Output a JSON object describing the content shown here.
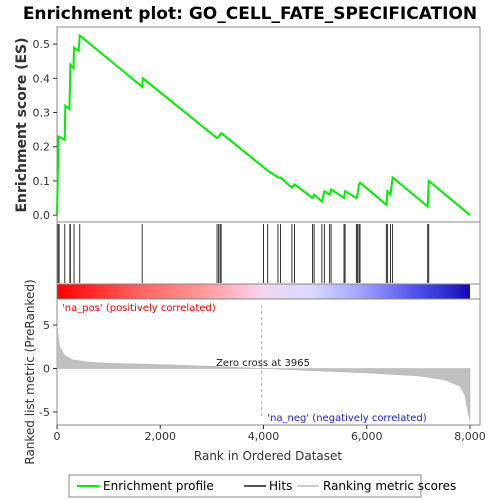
{
  "chart_data": {
    "type": "line",
    "title": "Enrichment plot: GO_CELL_FATE_SPECIFICATION",
    "xlabel": "Rank in Ordered Dataset",
    "xlim": [
      0,
      8000
    ],
    "x_ticks": [
      "0",
      "2,000",
      "4,000",
      "6,000",
      "8,000"
    ],
    "x_tick_values": [
      0,
      2000,
      4000,
      6000,
      8000
    ],
    "top_panel": {
      "ylabel": "Enrichment score (ES)",
      "ylim": [
        -0.02,
        0.55
      ],
      "y_ticks": [
        "0.0",
        "0.1",
        "0.2",
        "0.3",
        "0.4",
        "0.5"
      ],
      "y_tick_values": [
        0.0,
        0.1,
        0.2,
        0.3,
        0.4,
        0.5
      ],
      "series": [
        {
          "name": "Enrichment profile",
          "color": "#00ee00",
          "points": [
            [
              0,
              0.0
            ],
            [
              30,
              0.23
            ],
            [
              150,
              0.22
            ],
            [
              160,
              0.32
            ],
            [
              240,
              0.31
            ],
            [
              250,
              0.37
            ],
            [
              260,
              0.44
            ],
            [
              320,
              0.43
            ],
            [
              330,
              0.49
            ],
            [
              420,
              0.48
            ],
            [
              440,
              0.525
            ],
            [
              1650,
              0.375
            ],
            [
              1660,
              0.4
            ],
            [
              3100,
              0.225
            ],
            [
              3130,
              0.23
            ],
            [
              3160,
              0.235
            ],
            [
              3180,
              0.24
            ],
            [
              4000,
              0.14
            ],
            [
              4080,
              0.13
            ],
            [
              4280,
              0.11
            ],
            [
              4330,
              0.11
            ],
            [
              4550,
              0.08
            ],
            [
              4600,
              0.09
            ],
            [
              4950,
              0.05
            ],
            [
              4980,
              0.06
            ],
            [
              5130,
              0.04
            ],
            [
              5180,
              0.07
            ],
            [
              5280,
              0.06
            ],
            [
              5310,
              0.075
            ],
            [
              5560,
              0.05
            ],
            [
              5580,
              0.07
            ],
            [
              5800,
              0.05
            ],
            [
              5820,
              0.06
            ],
            [
              5850,
              0.09
            ],
            [
              5870,
              0.095
            ],
            [
              6380,
              0.03
            ],
            [
              6400,
              0.07
            ],
            [
              6460,
              0.06
            ],
            [
              6500,
              0.11
            ],
            [
              7180,
              0.025
            ],
            [
              7200,
              0.1
            ],
            [
              8000,
              0.0
            ]
          ]
        }
      ]
    },
    "hits": [
      20,
      40,
      150,
      250,
      260,
      330,
      440,
      1650,
      3100,
      3130,
      3160,
      3180,
      4000,
      4080,
      4280,
      4330,
      4550,
      4600,
      4950,
      4980,
      5130,
      5180,
      5280,
      5310,
      5560,
      5580,
      5800,
      5820,
      5850,
      5870,
      6380,
      6400,
      6460,
      6500,
      7180,
      7200
    ],
    "bottom_panel": {
      "ylabel": "Ranked list metric (PreRanked)",
      "ylim": [
        -6.5,
        8.0
      ],
      "y_ticks": [
        "-5",
        "0",
        "5"
      ],
      "y_tick_values": [
        -5,
        0,
        5
      ],
      "series_name": "Ranking metric scores",
      "metric_points": [
        [
          0,
          5.0
        ],
        [
          50,
          2.5
        ],
        [
          150,
          1.5
        ],
        [
          300,
          1.0
        ],
        [
          600,
          0.75
        ],
        [
          1000,
          0.6
        ],
        [
          2000,
          0.45
        ],
        [
          3000,
          0.25
        ],
        [
          3965,
          0.0
        ],
        [
          5000,
          -0.25
        ],
        [
          6000,
          -0.5
        ],
        [
          7000,
          -0.85
        ],
        [
          7500,
          -1.3
        ],
        [
          7800,
          -2.0
        ],
        [
          7900,
          -3.0
        ],
        [
          7960,
          -5.0
        ],
        [
          8000,
          -6.0
        ]
      ],
      "zero_cross_label": "Zero cross at 3965",
      "zero_cross": 3965,
      "pos_label": "'na_pos' (positively correlated)",
      "neg_label": "'na_neg' (negatively correlated)"
    },
    "legend": {
      "position": "bottom",
      "items": [
        {
          "label": "Enrichment profile",
          "color": "#00ee00"
        },
        {
          "label": "Hits",
          "color": "#555555"
        },
        {
          "label": "Ranking metric scores",
          "color": "#cccccc"
        }
      ]
    },
    "grid": false
  }
}
